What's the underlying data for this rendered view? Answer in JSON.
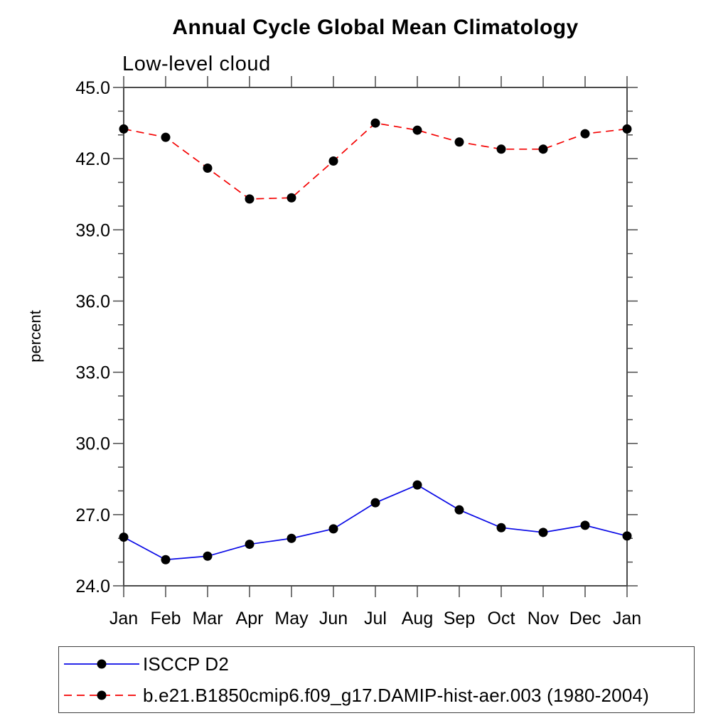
{
  "page": {
    "background": "#ffffff"
  },
  "chart_data": {
    "type": "line",
    "title": "Annual Cycle Global Mean Climatology",
    "subtitle": "Low-level cloud",
    "ylabel": "percent",
    "xlabel": "",
    "categories": [
      "Jan",
      "Feb",
      "Mar",
      "Apr",
      "May",
      "Jun",
      "Jul",
      "Aug",
      "Sep",
      "Oct",
      "Nov",
      "Dec",
      "Jan"
    ],
    "ylim": [
      24.0,
      45.0
    ],
    "y_major_step": 3.0,
    "y_minor_step": 1.0,
    "y_tick_labels": [
      "24.0",
      "27.0",
      "30.0",
      "33.0",
      "36.0",
      "39.0",
      "42.0",
      "45.0"
    ],
    "grid": false,
    "legend_position": "bottom-left-box",
    "axis_color": "#4a4a4a",
    "marker_color": "#000000",
    "series": [
      {
        "name": "ISCCP D2",
        "color": "#0a0ae6",
        "line_style": "solid",
        "marker": "filled-circle",
        "values": [
          26.05,
          25.1,
          25.25,
          25.75,
          26.0,
          26.4,
          27.5,
          28.25,
          27.2,
          26.45,
          26.25,
          26.55,
          26.1
        ]
      },
      {
        "name": "b.e21.B1850cmip6.f09_g17.DAMIP-hist-aer.003 (1980-2004)",
        "color": "#f40000",
        "line_style": "dashed",
        "marker": "filled-circle",
        "values": [
          43.25,
          42.9,
          41.6,
          40.3,
          40.35,
          41.9,
          43.5,
          43.2,
          42.7,
          42.4,
          42.4,
          43.05,
          43.25
        ]
      }
    ]
  }
}
